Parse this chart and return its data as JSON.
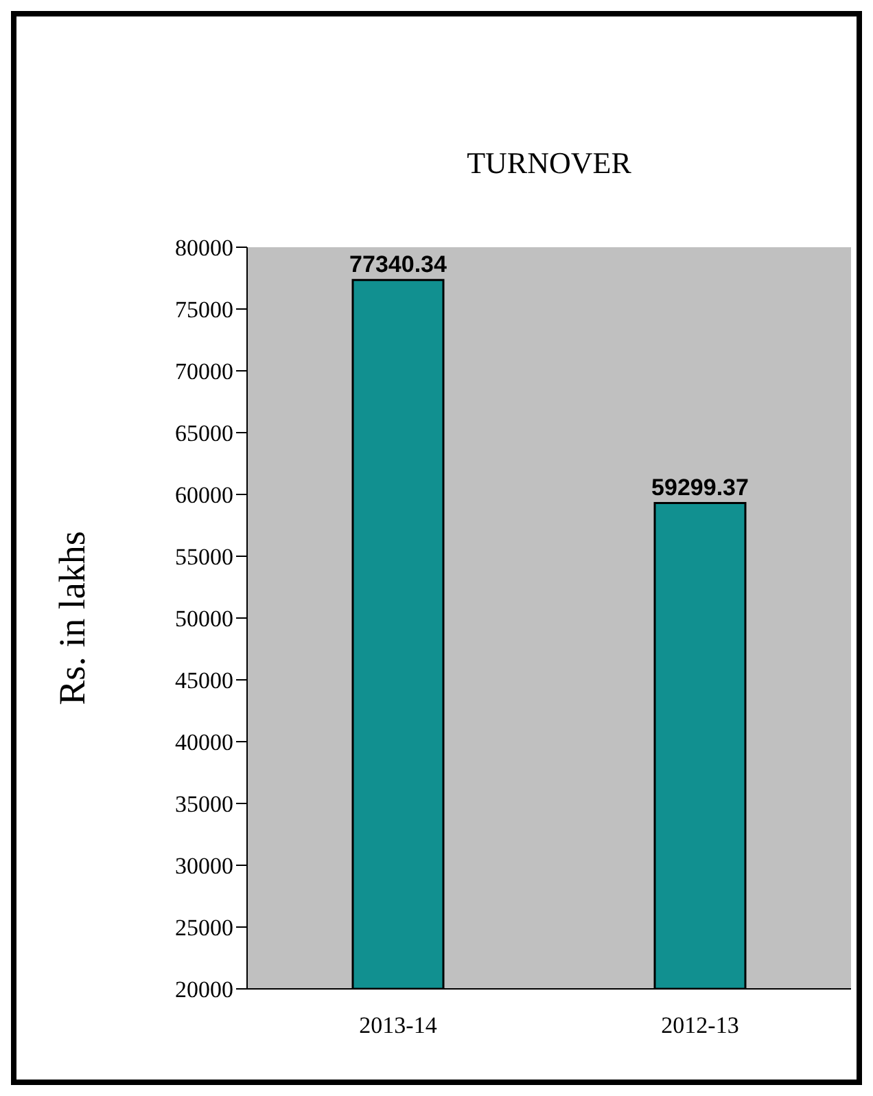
{
  "chart_data": {
    "type": "bar",
    "title": "TURNOVER",
    "ylabel": "Rs. in lakhs",
    "categories": [
      "2013-14",
      "2012-13"
    ],
    "values": [
      77340.34,
      59299.37
    ],
    "color": "#119090",
    "ylim": [
      20000,
      80000
    ],
    "yticks": [
      20000,
      25000,
      30000,
      35000,
      40000,
      45000,
      50000,
      55000,
      60000,
      65000,
      70000,
      75000,
      80000
    ],
    "data_labels": true,
    "grid": false,
    "legend": false
  }
}
